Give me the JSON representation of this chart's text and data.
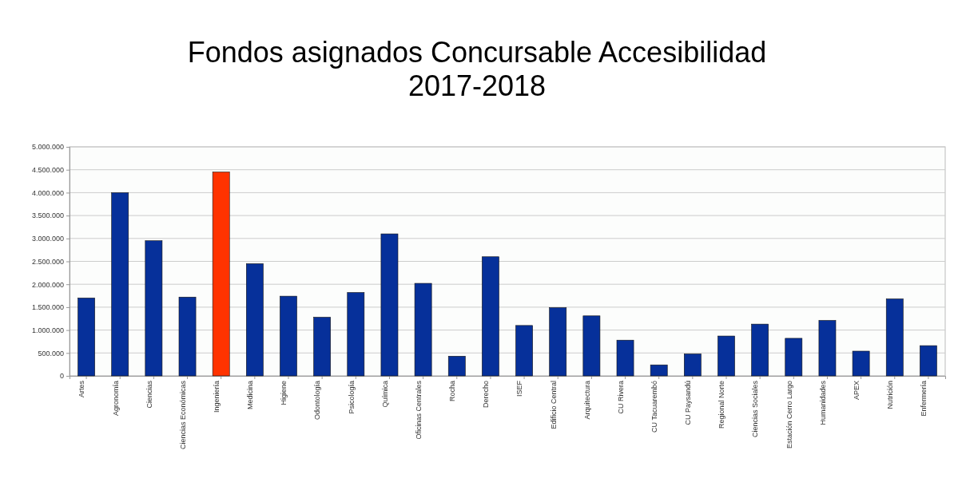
{
  "chart_data": {
    "type": "bar",
    "title": "Fondos asignados Concursable Accesibilidad 2017-2018",
    "categories": [
      "Artes",
      "Agronomía",
      "Ciencias",
      "Ciencias Económicas",
      "Ingeniería",
      "Medicina",
      "Higiene",
      "Odontología",
      "Psicología",
      "Química",
      "Oficinas Centrales",
      "Rocha",
      "Derecho",
      "ISEF",
      "Edificio Central",
      "Arquitectura",
      "CU Rivera",
      "CU Tacuarembó",
      "CU Paysandú",
      "Regional Norte",
      "Ciencias Sociales",
      "Estación Cerro Largo",
      "Humanidades",
      "APEX",
      "Nutrición",
      "Enfermería"
    ],
    "values": [
      1700000,
      4000000,
      2950000,
      1720000,
      4450000,
      2450000,
      1740000,
      1280000,
      1820000,
      3100000,
      2020000,
      430000,
      2600000,
      1100000,
      1490000,
      1310000,
      780000,
      240000,
      480000,
      870000,
      1130000,
      820000,
      1210000,
      540000,
      1680000,
      660000
    ],
    "colors": [
      "#06309a",
      "#06309a",
      "#06309a",
      "#06309a",
      "#ff3300",
      "#06309a",
      "#06309a",
      "#06309a",
      "#06309a",
      "#06309a",
      "#06309a",
      "#06309a",
      "#06309a",
      "#06309a",
      "#06309a",
      "#06309a",
      "#06309a",
      "#06309a",
      "#06309a",
      "#06309a",
      "#06309a",
      "#06309a",
      "#06309a",
      "#06309a",
      "#06309a",
      "#06309a"
    ],
    "ylim": [
      0,
      5000000
    ],
    "yticks": [
      0,
      {
        "value": 500000,
        "label": "500.000"
      },
      {
        "value": 1000000,
        "label": "1.000.000"
      },
      {
        "value": 1500000,
        "label": "1.500.000"
      },
      {
        "value": 2000000,
        "label": "2.000.000"
      },
      {
        "value": 2500000,
        "label": "2.500.000"
      },
      {
        "value": 3000000,
        "label": "3.000.000"
      },
      {
        "value": 3500000,
        "label": "3.500.000"
      },
      {
        "value": 4000000,
        "label": "4.000.000"
      },
      {
        "value": 4500000,
        "label": "4.500.000"
      },
      {
        "value": 5000000,
        "label": "5.000.000"
      }
    ],
    "grid": true
  }
}
